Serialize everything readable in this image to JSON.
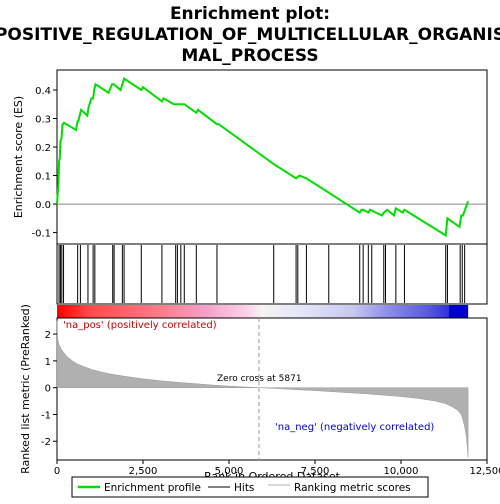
{
  "chart_data": {
    "type": "line",
    "title": "Enrichment plot: POSITIVE_REGULATION_OF_MULTICELLULAR_ORGANISMAL_PROCESS",
    "title_lines": [
      "Enrichment plot:",
      "POSITIVE_REGULATION_OF_MULTICELLULAR_ORGANIS",
      "MAL_PROCESS"
    ],
    "xlabel": "Rank in Ordered Dataset",
    "xlim": [
      0,
      12500
    ],
    "x_ticks": [
      0,
      2500,
      5000,
      7500,
      10000,
      12500
    ],
    "x_tick_labels": [
      "0",
      "2,500",
      "5,000",
      "7,500",
      "10,000",
      "12,500"
    ],
    "top_panel": {
      "ylabel": "Enrichment score (ES)",
      "ylim": [
        -0.14,
        0.47
      ],
      "y_ticks": [
        -0.1,
        0.0,
        0.1,
        0.2,
        0.3,
        0.4
      ],
      "y_tick_labels": [
        "-0.1",
        "0.0",
        "0.1",
        "0.2",
        "0.3",
        "0.4"
      ],
      "series": [
        {
          "name": "Enrichment profile",
          "color": "#00dd00",
          "x": [
            0,
            40,
            60,
            80,
            100,
            130,
            160,
            180,
            200,
            550,
            600,
            620,
            680,
            700,
            880,
            920,
            1000,
            1050,
            1080,
            1120,
            1500,
            1600,
            1650,
            1850,
            1900,
            1950,
            2450,
            2500,
            3050,
            3100,
            3400,
            3500,
            3600,
            3700,
            4050,
            4100,
            4650,
            4700,
            6300,
            6950,
            7050,
            7250,
            7900,
            8800,
            8850,
            8900,
            9050,
            9100,
            9450,
            9500,
            9600,
            9800,
            9850,
            10050,
            10100,
            11300,
            11350,
            11700,
            11750,
            11800,
            11950
          ],
          "y": [
            0.0,
            0.07,
            0.15,
            0.16,
            0.22,
            0.23,
            0.28,
            0.28,
            0.285,
            0.26,
            0.29,
            0.29,
            0.32,
            0.33,
            0.31,
            0.34,
            0.37,
            0.37,
            0.4,
            0.42,
            0.39,
            0.42,
            0.42,
            0.4,
            0.42,
            0.44,
            0.4,
            0.41,
            0.36,
            0.37,
            0.35,
            0.35,
            0.35,
            0.35,
            0.32,
            0.33,
            0.28,
            0.28,
            0.14,
            0.09,
            0.1,
            0.09,
            0.04,
            -0.03,
            -0.02,
            -0.02,
            -0.03,
            -0.02,
            -0.04,
            -0.03,
            -0.02,
            -0.04,
            -0.015,
            -0.03,
            -0.02,
            -0.11,
            -0.05,
            -0.08,
            -0.04,
            -0.04,
            0.01
          ]
        }
      ]
    },
    "hits": {
      "name": "Hits",
      "color": "#000000",
      "x": [
        60,
        100,
        140,
        190,
        600,
        680,
        900,
        1050,
        1100,
        1620,
        1660,
        1900,
        1950,
        2450,
        3050,
        3450,
        3500,
        3600,
        3700,
        4050,
        4650,
        6300,
        6950,
        7000,
        7250,
        7900,
        8800,
        8900,
        9050,
        9150,
        9500,
        9550,
        9850,
        10100,
        11300,
        11350,
        11720,
        11780,
        11850
      ]
    },
    "bar_labels": {
      "positive": "'na_pos' (positively correlated)",
      "negative": "'na_neg' (negatively correlated)",
      "positive_color": "#cc0000",
      "negative_color": "#0000cc"
    },
    "bottom_panel": {
      "ylabel": "Ranked list metric (PreRanked)",
      "ylim": [
        -2.7,
        2.6
      ],
      "y_ticks": [
        -2,
        -1,
        0,
        1,
        2
      ],
      "y_tick_labels": [
        "-2",
        "-1",
        "0",
        "1",
        "2"
      ],
      "zero_cross_label": "Zero cross at 5871",
      "zero_cross": 5871,
      "series": [
        {
          "name": "Ranking metric scores",
          "color": "#b0b0b0",
          "x": [
            0,
            20,
            60,
            120,
            200,
            300,
            450,
            600,
            800,
            1000,
            1300,
            1600,
            2000,
            2500,
            3000,
            3500,
            4000,
            4500,
            5000,
            5500,
            5871,
            6500,
            7000,
            7500,
            8000,
            8500,
            9000,
            9500,
            10000,
            10500,
            11000,
            11300,
            11500,
            11650,
            11750,
            11800,
            11850,
            11900,
            11950
          ],
          "y": [
            2.5,
            1.8,
            1.6,
            1.45,
            1.3,
            1.15,
            1.0,
            0.88,
            0.78,
            0.68,
            0.58,
            0.5,
            0.42,
            0.33,
            0.26,
            0.2,
            0.15,
            0.1,
            0.06,
            0.02,
            0.0,
            -0.04,
            -0.08,
            -0.11,
            -0.15,
            -0.19,
            -0.23,
            -0.28,
            -0.33,
            -0.4,
            -0.5,
            -0.6,
            -0.72,
            -0.85,
            -1.0,
            -1.2,
            -1.45,
            -1.85,
            -2.6
          ]
        }
      ]
    },
    "legend": [
      {
        "label": "Enrichment profile",
        "color": "#00dd00"
      },
      {
        "label": "Hits",
        "color": "#000000"
      },
      {
        "label": "Ranking metric scores",
        "color": "#b0b0b0"
      }
    ]
  }
}
